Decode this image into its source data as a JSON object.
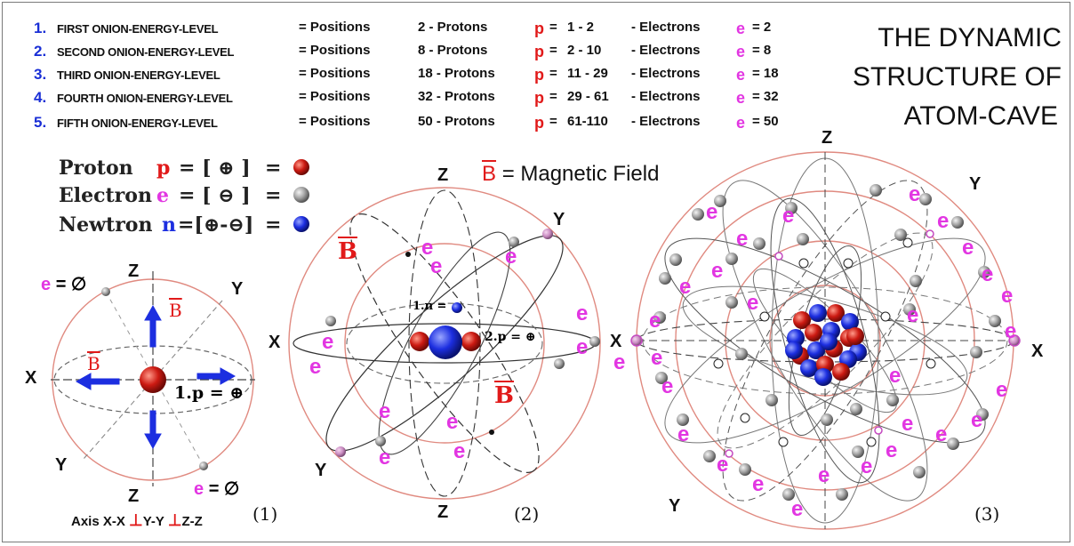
{
  "levels": [
    {
      "num": "1.",
      "name": "FIRST ONION-ENERGY-LEVEL",
      "positions_label": "= Positions",
      "positions": "2 - Protons",
      "p": "p",
      "eq1": "=",
      "protons": "1 - 2",
      "elec_label": "- Electrons",
      "e": "e",
      "eq2": "= 2"
    },
    {
      "num": "2.",
      "name": "SECOND ONION-ENERGY-LEVEL",
      "positions_label": "= Positions",
      "positions": "8 - Protons",
      "p": "p",
      "eq1": "=",
      "protons": "2 - 10",
      "elec_label": "- Electrons",
      "e": "e",
      "eq2": "= 8"
    },
    {
      "num": "3.",
      "name": "THIRD ONION-ENERGY-LEVEL",
      "positions_label": "= Positions",
      "positions": "18 - Protons",
      "p": "p",
      "eq1": "=",
      "protons": "11 - 29",
      "elec_label": "- Electrons",
      "e": "e",
      "eq2": "= 18"
    },
    {
      "num": "4.",
      "name": "FOURTH ONION-ENERGY-LEVEL",
      "positions_label": "= Positions",
      "positions": "32 - Protons",
      "p": "p",
      "eq1": "=",
      "protons": "29 - 61",
      "elec_label": "- Electrons",
      "e": "e",
      "eq2": "= 32"
    },
    {
      "num": "5.",
      "name": "FIFTH ONION-ENERGY-LEVEL",
      "positions_label": "= Positions",
      "positions": "50 - Protons",
      "p": "p",
      "eq1": "=",
      "protons": "61-110",
      "elec_label": "- Electrons",
      "e": "e",
      "eq2": "= 50"
    }
  ],
  "title": {
    "line1": "THE  DYNAMIC",
    "line2": "STRUCTURE OF",
    "line3": "ATOM-CAVE"
  },
  "legend": {
    "proton": {
      "word": "Proton",
      "sym": "p",
      "formula": "= [ ⊕ ]",
      "eq": "="
    },
    "electron": {
      "word": "Electron",
      "sym": "e",
      "formula": "= [ ⊖ ]",
      "eq": "="
    },
    "newtron": {
      "word": "Newtron",
      "sym": "n",
      "formula": "=[⊕-⊖]",
      "eq": "="
    }
  },
  "magnetic": {
    "symbol": "B",
    "text": "= Magnetic Field"
  },
  "fig1": {
    "e_top": "e",
    "e_top_val": "= ∅",
    "e_bottom": "e",
    "e_bottom_val": "= ∅",
    "z_top": "Z",
    "z_bottom": "Z",
    "x": "X",
    "y_top": "Y",
    "y_bottom": "Y",
    "b1": "B",
    "b2": "B",
    "p_label": "1.p = ⊕",
    "caption": "(1)"
  },
  "fig2": {
    "z_top": "Z",
    "z_bottom": "Z",
    "x": "X",
    "y_top": "Y",
    "y_bottom": "Y",
    "b1": "B",
    "b2": "B",
    "n_label": "1.n =",
    "p_label": "2.p = ⊕",
    "e": "e",
    "caption": "(2)"
  },
  "fig3": {
    "z": "Z",
    "x_left": "X",
    "x_right": "X",
    "y_top": "Y",
    "y_bottom": "Y",
    "e": "e",
    "caption": "(3)"
  },
  "axis_note": {
    "prefix": "Axis",
    "a": "X-X",
    "perp": "⊥",
    "b": "Y-Y",
    "c": "Z-Z"
  },
  "colors": {
    "proton": "#d11a1a",
    "electron": "#9a9a9a",
    "newtron": "#1c2ee0",
    "electron_label": "#e236e2",
    "orbit": "#e08a80",
    "number": "#1a2fd6"
  }
}
